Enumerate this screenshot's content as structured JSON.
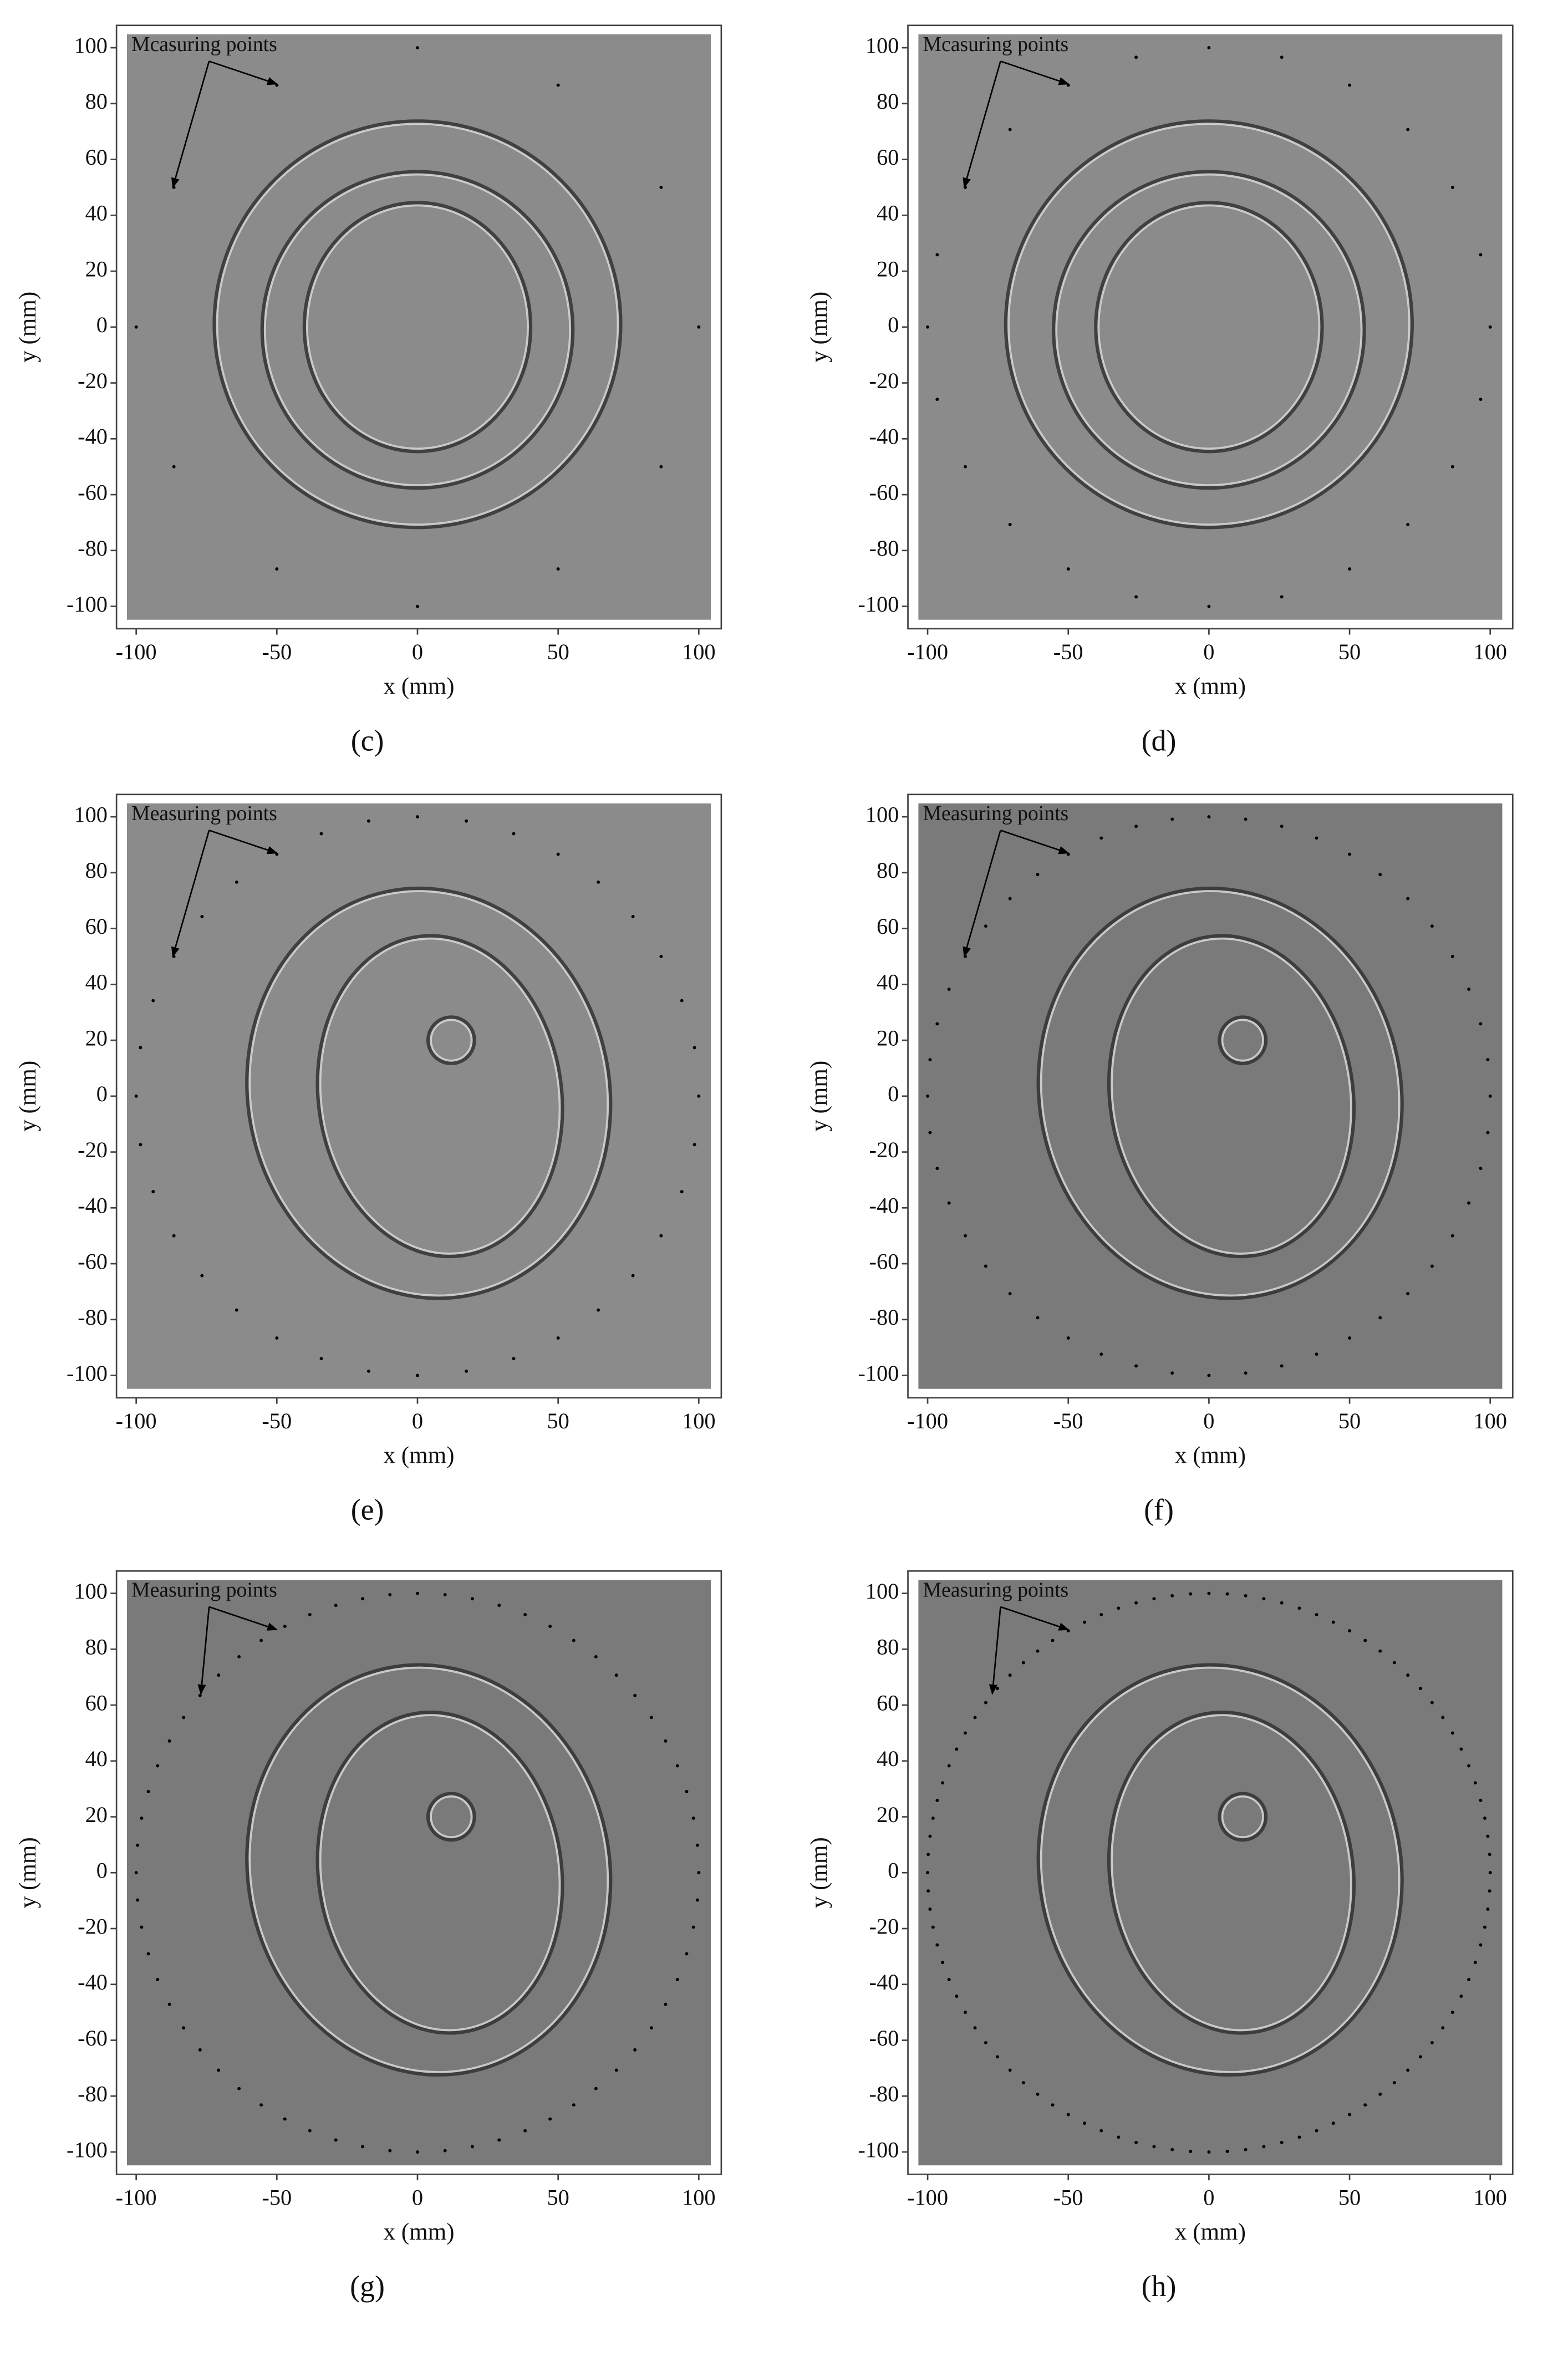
{
  "chart_data": [
    {
      "type": "image",
      "caption": "(c)",
      "annotation": "Mcasuring points",
      "xlabel": "x (mm)",
      "ylabel": "y (mm)",
      "background": "#8b8b8b",
      "measuring_points": 12,
      "point_radius": 100,
      "xlim": [
        -107,
        108
      ],
      "ylim": [
        -108,
        108
      ],
      "xticks": [
        -100,
        -50,
        0,
        50,
        100
      ],
      "yticks": [
        -100,
        -80,
        -60,
        -40,
        -20,
        0,
        20,
        40,
        60,
        80,
        100
      ]
    },
    {
      "type": "image",
      "caption": "(d)",
      "annotation": "Mcasuring points",
      "xlabel": "x (mm)",
      "ylabel": "y (mm)",
      "background": "#8b8b8b",
      "measuring_points": 24,
      "point_radius": 100,
      "xlim": [
        -107,
        108
      ],
      "ylim": [
        -108,
        108
      ],
      "xticks": [
        -100,
        -50,
        0,
        50,
        100
      ],
      "yticks": [
        -100,
        -80,
        -60,
        -40,
        -20,
        0,
        20,
        40,
        60,
        80,
        100
      ]
    },
    {
      "type": "image",
      "caption": "(e)",
      "annotation": "Measuring points",
      "xlabel": "x (mm)",
      "ylabel": "y (mm)",
      "background": "#8b8b8b",
      "measuring_points": 36,
      "point_radius": 100,
      "xlim": [
        -107,
        108
      ],
      "ylim": [
        -108,
        108
      ],
      "xticks": [
        -100,
        -50,
        0,
        50,
        100
      ],
      "yticks": [
        -100,
        -80,
        -60,
        -40,
        -20,
        0,
        20,
        40,
        60,
        80,
        100
      ]
    },
    {
      "type": "image",
      "caption": "(f)",
      "annotation": "Measuring points",
      "xlabel": "x (mm)",
      "ylabel": "y (mm)",
      "background": "#7a7a7a",
      "measuring_points": 48,
      "point_radius": 100,
      "xlim": [
        -107,
        108
      ],
      "ylim": [
        -108,
        108
      ],
      "xticks": [
        -100,
        -50,
        0,
        50,
        100
      ],
      "yticks": [
        -100,
        -80,
        -60,
        -40,
        -20,
        0,
        20,
        40,
        60,
        80,
        100
      ]
    },
    {
      "type": "image",
      "caption": "(g)",
      "annotation": "Measuring points",
      "xlabel": "x (mm)",
      "ylabel": "y (mm)",
      "background": "#7a7a7a",
      "measuring_points": 64,
      "point_radius": 100,
      "xlim": [
        -107,
        108
      ],
      "ylim": [
        -108,
        108
      ],
      "xticks": [
        -100,
        -50,
        0,
        50,
        100
      ],
      "yticks": [
        -100,
        -80,
        -60,
        -40,
        -20,
        0,
        20,
        40,
        60,
        80,
        100
      ]
    },
    {
      "type": "image",
      "caption": "(h)",
      "annotation": "Measuring points",
      "xlabel": "x (mm)",
      "ylabel": "y (mm)",
      "background": "#7a7a7a",
      "measuring_points": 96,
      "point_radius": 100,
      "xlim": [
        -107,
        108
      ],
      "ylim": [
        -108,
        108
      ],
      "xticks": [
        -100,
        -50,
        0,
        50,
        100
      ],
      "yticks": [
        -100,
        -80,
        -60,
        -40,
        -20,
        0,
        20,
        40,
        60,
        80,
        100
      ]
    }
  ]
}
